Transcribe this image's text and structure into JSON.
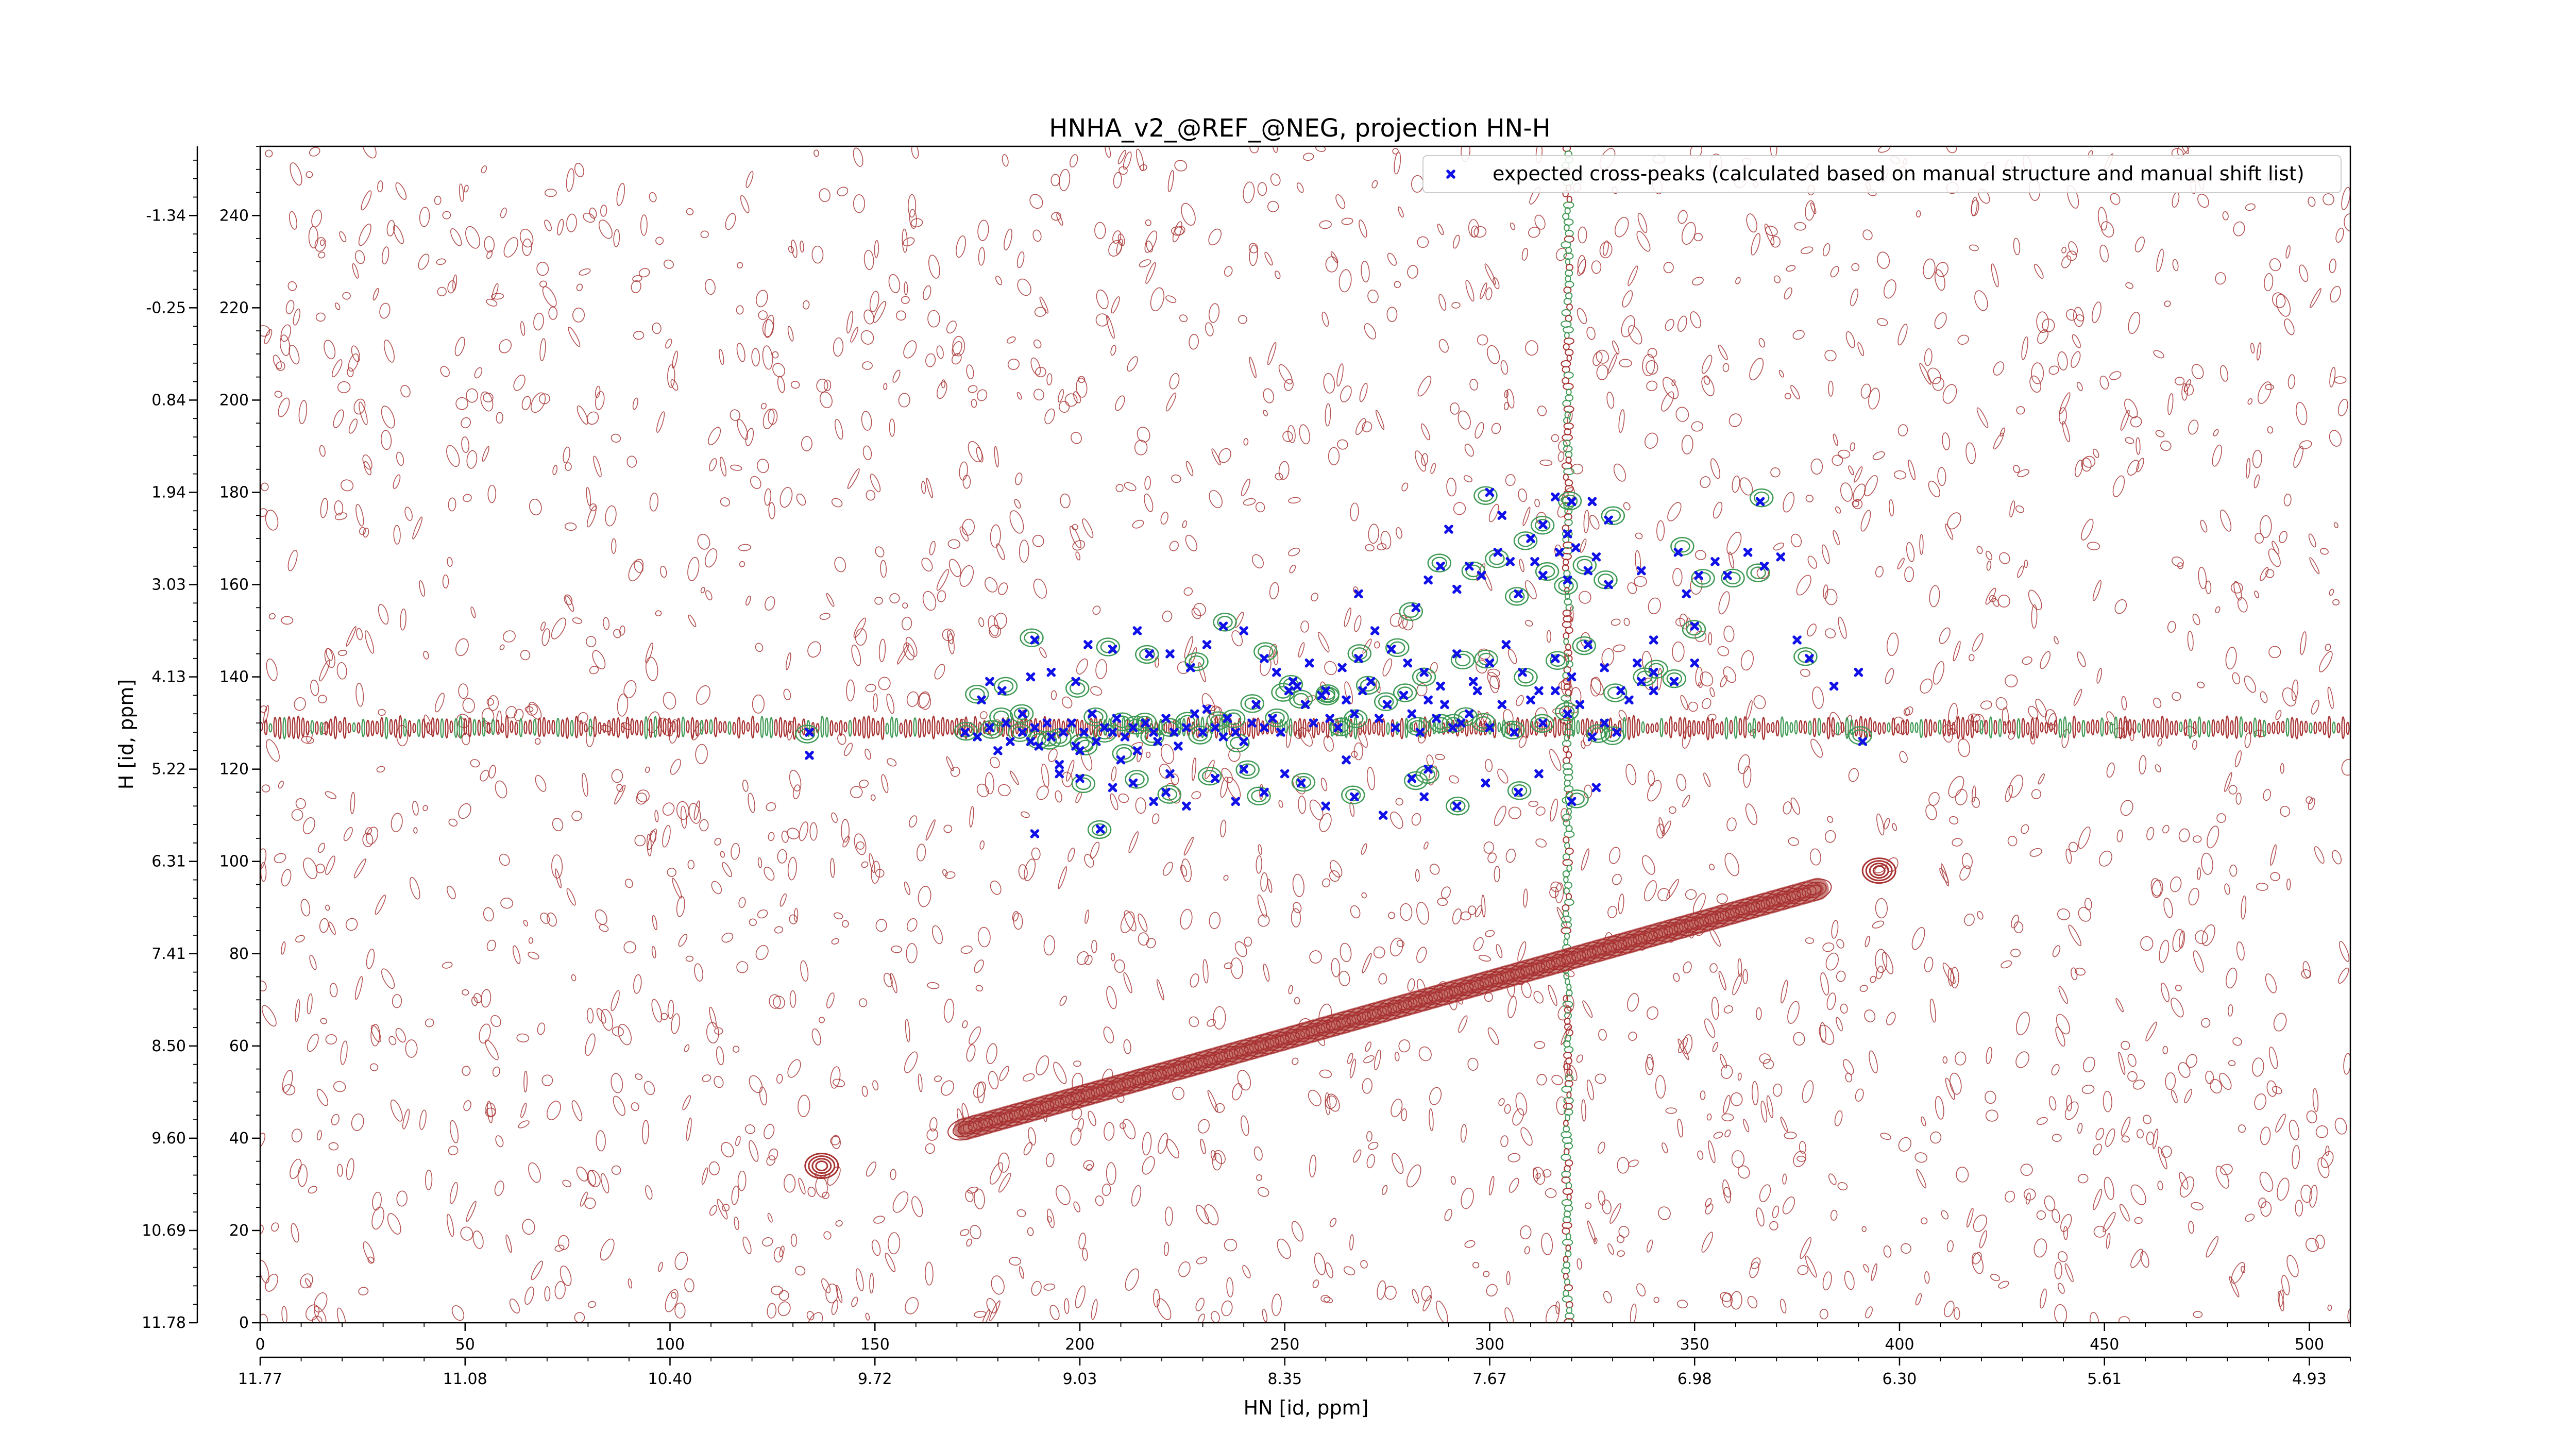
{
  "chart_data": {
    "type": "scatter",
    "title": "HNHA_v2_@REF_@NEG, projection HN-H",
    "xlabel": "HN [id, ppm]",
    "ylabel": "H [id, ppm]",
    "x_index_range": [
      0,
      510
    ],
    "y_index_range": [
      0,
      255
    ],
    "x_index_ticks": [
      "0",
      "50",
      "100",
      "150",
      "200",
      "250",
      "300",
      "350",
      "400",
      "450",
      "500"
    ],
    "x_ppm_ticks": [
      "11.77",
      "11.08",
      "10.40",
      "9.72",
      "9.03",
      "8.35",
      "7.67",
      "6.98",
      "6.30",
      "5.61",
      "4.93"
    ],
    "y_index_ticks": [
      "0",
      "20",
      "40",
      "60",
      "80",
      "100",
      "120",
      "140",
      "160",
      "180",
      "200",
      "220",
      "240"
    ],
    "y_ppm_ticks": [
      "11.78",
      "10.69",
      "9.60",
      "8.50",
      "7.41",
      "6.31",
      "5.22",
      "4.13",
      "3.03",
      "1.94",
      "0.84",
      "-0.25",
      "-1.34"
    ],
    "legend": {
      "placement": "top-right",
      "entries": [
        "expected cross-peaks (calculated based on manual structure and manual shift list)"
      ]
    },
    "colors": {
      "expected_marker": "#1010e8",
      "negative_contour": "#a83232",
      "positive_contour": "#3f9a55"
    },
    "series": [
      {
        "name": "expected cross-peaks (calculated based on manual structure and manual shift list)",
        "marker": "x",
        "points": [
          [
            134,
            128
          ],
          [
            134,
            123
          ],
          [
            172,
            128
          ],
          [
            175,
            127
          ],
          [
            178,
            129
          ],
          [
            180,
            124
          ],
          [
            182,
            130
          ],
          [
            183,
            126
          ],
          [
            186,
            128
          ],
          [
            188,
            126
          ],
          [
            186,
            132
          ],
          [
            189,
            129
          ],
          [
            190,
            125
          ],
          [
            192,
            130
          ],
          [
            193,
            127
          ],
          [
            195,
            121
          ],
          [
            196,
            128
          ],
          [
            198,
            130
          ],
          [
            199,
            125
          ],
          [
            201,
            128
          ],
          [
            203,
            132
          ],
          [
            204,
            126
          ],
          [
            206,
            129
          ],
          [
            208,
            128
          ],
          [
            209,
            131
          ],
          [
            211,
            127
          ],
          [
            213,
            129
          ],
          [
            214,
            124
          ],
          [
            216,
            130
          ],
          [
            218,
            128
          ],
          [
            219,
            126
          ],
          [
            221,
            131
          ],
          [
            223,
            128
          ],
          [
            224,
            125
          ],
          [
            226,
            129
          ],
          [
            228,
            132
          ],
          [
            230,
            128
          ],
          [
            231,
            133
          ],
          [
            233,
            129
          ],
          [
            235,
            127
          ],
          [
            236,
            131
          ],
          [
            238,
            128
          ],
          [
            240,
            126
          ],
          [
            242,
            130
          ],
          [
            243,
            134
          ],
          [
            245,
            129
          ],
          [
            247,
            131
          ],
          [
            249,
            128
          ],
          [
            251,
            137
          ],
          [
            253,
            138
          ],
          [
            255,
            134
          ],
          [
            257,
            130
          ],
          [
            259,
            136
          ],
          [
            261,
            131
          ],
          [
            263,
            129
          ],
          [
            265,
            135
          ],
          [
            267,
            132
          ],
          [
            269,
            137
          ],
          [
            271,
            139
          ],
          [
            273,
            131
          ],
          [
            275,
            134
          ],
          [
            277,
            129
          ],
          [
            279,
            136
          ],
          [
            281,
            132
          ],
          [
            283,
            128
          ],
          [
            285,
            135
          ],
          [
            287,
            131
          ],
          [
            289,
            134
          ],
          [
            291,
            129
          ],
          [
            293,
            130
          ],
          [
            295,
            132
          ],
          [
            297,
            137
          ],
          [
            300,
            129
          ],
          [
            303,
            134
          ],
          [
            306,
            128
          ],
          [
            310,
            135
          ],
          [
            313,
            130
          ],
          [
            316,
            137
          ],
          [
            319,
            132
          ],
          [
            322,
            134
          ],
          [
            325,
            127
          ],
          [
            328,
            130
          ],
          [
            331,
            128
          ],
          [
            334,
            135
          ],
          [
            337,
            139
          ],
          [
            340,
            137
          ],
          [
            345,
            139
          ],
          [
            350,
            143
          ],
          [
            176,
            135
          ],
          [
            178,
            139
          ],
          [
            181,
            137
          ],
          [
            188,
            140
          ],
          [
            189,
            148
          ],
          [
            193,
            141
          ],
          [
            199,
            139
          ],
          [
            202,
            147
          ],
          [
            208,
            146
          ],
          [
            214,
            150
          ],
          [
            217,
            145
          ],
          [
            222,
            145
          ],
          [
            227,
            142
          ],
          [
            231,
            147
          ],
          [
            235,
            151
          ],
          [
            240,
            150
          ],
          [
            245,
            144
          ],
          [
            248,
            141
          ],
          [
            252,
            139
          ],
          [
            256,
            143
          ],
          [
            260,
            137
          ],
          [
            264,
            142
          ],
          [
            268,
            144
          ],
          [
            272,
            150
          ],
          [
            276,
            146
          ],
          [
            280,
            143
          ],
          [
            284,
            141
          ],
          [
            288,
            138
          ],
          [
            292,
            145
          ],
          [
            296,
            139
          ],
          [
            300,
            143
          ],
          [
            304,
            147
          ],
          [
            308,
            141
          ],
          [
            312,
            137
          ],
          [
            316,
            144
          ],
          [
            320,
            140
          ],
          [
            324,
            147
          ],
          [
            328,
            142
          ],
          [
            332,
            137
          ],
          [
            336,
            143
          ],
          [
            340,
            141
          ],
          [
            268,
            158
          ],
          [
            282,
            155
          ],
          [
            285,
            161
          ],
          [
            288,
            164
          ],
          [
            292,
            159
          ],
          [
            295,
            164
          ],
          [
            298,
            162
          ],
          [
            302,
            167
          ],
          [
            305,
            165
          ],
          [
            307,
            158
          ],
          [
            311,
            165
          ],
          [
            313,
            162
          ],
          [
            317,
            167
          ],
          [
            319,
            161
          ],
          [
            321,
            168
          ],
          [
            324,
            163
          ],
          [
            326,
            166
          ],
          [
            329,
            160
          ],
          [
            337,
            163
          ],
          [
            346,
            167
          ],
          [
            348,
            158
          ],
          [
            351,
            162
          ],
          [
            355,
            165
          ],
          [
            358,
            162
          ],
          [
            363,
            167
          ],
          [
            367,
            164
          ],
          [
            371,
            166
          ],
          [
            366,
            178
          ],
          [
            340,
            148
          ],
          [
            350,
            151
          ],
          [
            375,
            148
          ],
          [
            378,
            144
          ],
          [
            384,
            138
          ],
          [
            391,
            126
          ],
          [
            390,
            141
          ],
          [
            300,
            180
          ],
          [
            316,
            179
          ],
          [
            320,
            178
          ],
          [
            325,
            178
          ],
          [
            329,
            174
          ],
          [
            290,
            172
          ],
          [
            310,
            170
          ],
          [
            303,
            175
          ],
          [
            313,
            173
          ],
          [
            319,
            171
          ],
          [
            200,
            118
          ],
          [
            208,
            116
          ],
          [
            213,
            117
          ],
          [
            218,
            113
          ],
          [
            221,
            115
          ],
          [
            226,
            112
          ],
          [
            233,
            118
          ],
          [
            238,
            113
          ],
          [
            245,
            115
          ],
          [
            250,
            119
          ],
          [
            254,
            117
          ],
          [
            260,
            112
          ],
          [
            267,
            114
          ],
          [
            274,
            110
          ],
          [
            281,
            118
          ],
          [
            284,
            114
          ],
          [
            292,
            112
          ],
          [
            299,
            117
          ],
          [
            307,
            115
          ],
          [
            312,
            119
          ],
          [
            320,
            113
          ],
          [
            326,
            116
          ],
          [
            200,
            124
          ],
          [
            189,
            106
          ],
          [
            205,
            107
          ],
          [
            195,
            119
          ],
          [
            210,
            122
          ],
          [
            222,
            119
          ],
          [
            240,
            120
          ],
          [
            265,
            122
          ],
          [
            285,
            120
          ]
        ]
      }
    ],
    "contour_features": {
      "diagonal": {
        "from": [
          172,
          42
        ],
        "to": [
          380,
          94
        ]
      },
      "horizontal_streak_y": 129,
      "vertical_streak_x": 319,
      "isolated_peaks": [
        [
          137,
          34
        ],
        [
          395,
          98
        ]
      ]
    },
    "grid": false
  }
}
